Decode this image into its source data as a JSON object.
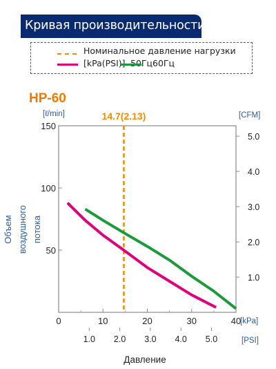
{
  "header": {
    "title": "Кривая производительности"
  },
  "legend": {
    "rated_label": "Номинальное давление нагрузки",
    "unit_label": "[kPa(PSI)]",
    "freq_50": "50Гц",
    "freq_60": "60Гц"
  },
  "colors": {
    "header_bg": "#0a2a6f",
    "magenta": "#e0007a",
    "green": "#1a9a3a",
    "orange": "#f08c00",
    "blue": "#2a5aa6",
    "model": "#f07a00"
  },
  "chart_data": {
    "type": "line",
    "title": "HP-60",
    "xlabel": "Давление",
    "ylabel": "Объем воздушного потока",
    "y_unit_left": "[ℓ/min]",
    "y_unit_right": "[CFM]",
    "x_unit_kpa": "[kPa]",
    "x_unit_psi": "[PSI]",
    "xlim": [
      0,
      40
    ],
    "ylim": [
      0,
      150
    ],
    "x_ticks": [
      "0",
      "10",
      "20",
      "30",
      "40"
    ],
    "y_ticks": [
      "150",
      "100",
      "50"
    ],
    "psi_ticks": [
      "1.0",
      "2.0",
      "3.0",
      "4.0",
      "5.0"
    ],
    "psi_tick_kpa": [
      6.895,
      13.79,
      20.684,
      27.579,
      34.474
    ],
    "cfm_ticks": [
      "5.0",
      "4.0",
      "3.0",
      "2.0",
      "1.0"
    ],
    "cfm_tick_values": [
      141.6,
      113.3,
      85.0,
      56.6,
      28.3
    ],
    "rated_pressure": {
      "x": 14.7,
      "label": "14.7(2.13)"
    },
    "grid": false,
    "series": [
      {
        "name": "50Гц",
        "color": "#e0007a",
        "x": [
          2,
          6,
          10,
          14.7,
          20,
          25,
          30,
          35.5
        ],
        "y": [
          88,
          74,
          62,
          50,
          36,
          25,
          14,
          4
        ]
      },
      {
        "name": "60Гц",
        "color": "#1a9a3a",
        "x": [
          6,
          10,
          14.7,
          20,
          25,
          30,
          35,
          40
        ],
        "y": [
          83,
          74,
          64,
          53,
          42,
          29,
          17,
          3
        ]
      }
    ]
  }
}
